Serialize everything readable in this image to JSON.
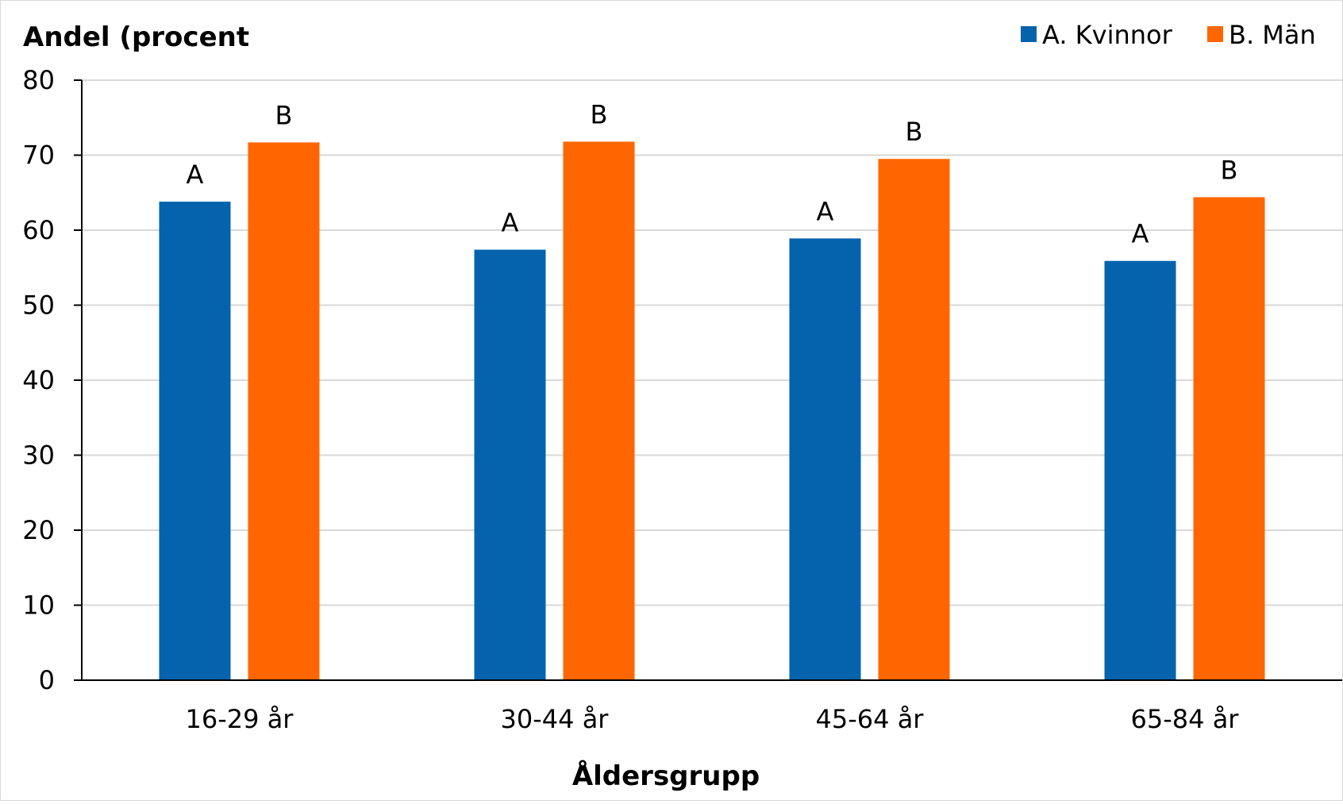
{
  "chart_data": {
    "type": "bar",
    "ylabel": "Andel (procent",
    "xlabel": "Åldersgrupp",
    "categories": [
      "16-29 år",
      "30-44 år",
      "45-64 år",
      "65-84 år"
    ],
    "series": [
      {
        "name": "A. Kvinnor",
        "color": "#0563ad",
        "values": [
          63.8,
          57.4,
          58.9,
          55.9
        ],
        "labels": [
          "A",
          "A",
          "A",
          "A"
        ]
      },
      {
        "name": "B. Män",
        "color": "#ff6600",
        "values": [
          71.7,
          71.8,
          69.5,
          64.4
        ],
        "labels": [
          "B",
          "B",
          "B",
          "B"
        ]
      }
    ],
    "ylim": [
      0,
      80
    ],
    "yticks": [
      0,
      10,
      20,
      30,
      40,
      50,
      60,
      70,
      80
    ],
    "grid": true,
    "legend": "top-right",
    "gridColor": "#d9d9d9",
    "axisColor": "#000000"
  }
}
